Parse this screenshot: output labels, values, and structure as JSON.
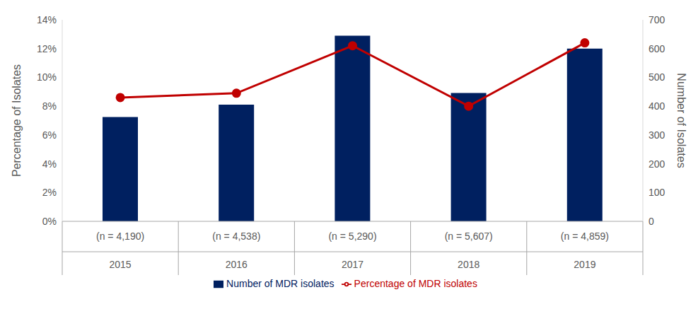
{
  "chart_data": {
    "type": "bar",
    "categories": [
      "2015",
      "2016",
      "2017",
      "2018",
      "2019"
    ],
    "n_labels": [
      "(n = 4,190)",
      "(n = 4,538)",
      "(n = 5,290)",
      "(n = 5,607)",
      "(n = 4,859)"
    ],
    "y_label": "Percentage of Isolates",
    "y2_label": "Number of Isolates",
    "ylim": [
      0,
      14
    ],
    "yticks": [
      {
        "value": 0,
        "label": "0%"
      },
      {
        "value": 2,
        "label": "2%"
      },
      {
        "value": 4,
        "label": "4%"
      },
      {
        "value": 6,
        "label": "6%"
      },
      {
        "value": 8,
        "label": "8%"
      },
      {
        "value": 10,
        "label": "10%"
      },
      {
        "value": 12,
        "label": "12%"
      },
      {
        "value": 14,
        "label": "14%"
      }
    ],
    "y2lim": [
      0,
      700
    ],
    "y2ticks": [
      0,
      100,
      200,
      300,
      400,
      500,
      600,
      700
    ],
    "grid": false,
    "legend": "bottom",
    "series": [
      {
        "name": "Number of MDR isolates",
        "type": "bar",
        "axis": "y2",
        "color": "#002060",
        "values": [
          362,
          405,
          645,
          446,
          600
        ]
      },
      {
        "name": "Percentage of MDR isolates",
        "type": "line",
        "axis": "y",
        "color": "#C00000",
        "marker": "circle",
        "values": [
          8.6,
          8.9,
          12.2,
          8.0,
          12.4
        ]
      }
    ]
  }
}
